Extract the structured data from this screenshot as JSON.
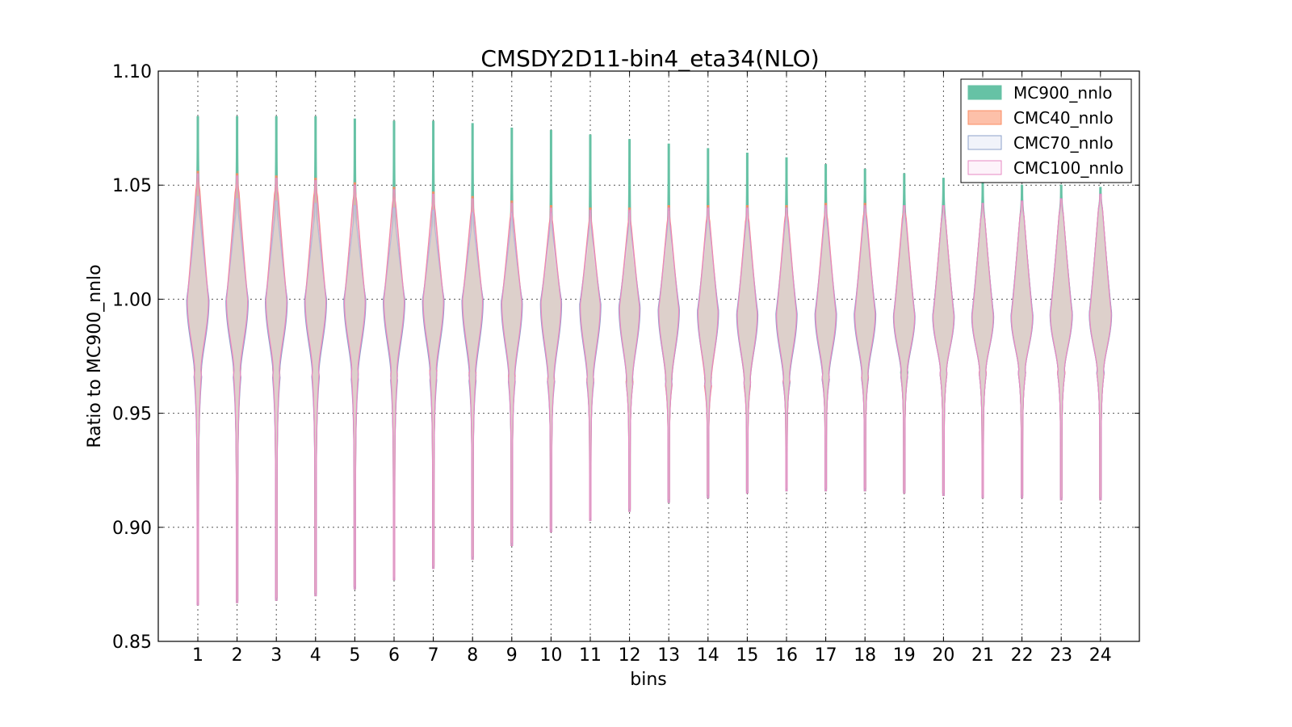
{
  "chart_data": {
    "type": "violin",
    "title": "CMSDY2D11-bin4_eta34(NLO)",
    "xlabel": "bins",
    "ylabel": "Ratio to MC900_nnlo",
    "ylim": [
      0.85,
      1.1
    ],
    "yticks": [
      "0.85",
      "0.90",
      "0.95",
      "1.00",
      "1.05",
      "1.10"
    ],
    "categories": [
      "1",
      "2",
      "3",
      "4",
      "5",
      "6",
      "7",
      "8",
      "9",
      "10",
      "11",
      "12",
      "13",
      "14",
      "15",
      "16",
      "17",
      "18",
      "19",
      "20",
      "21",
      "22",
      "23",
      "24"
    ],
    "grid": true,
    "legend_position": "top-right",
    "series": [
      {
        "name": "MC900_nnlo",
        "fill": "#66c2a5",
        "stroke": "#66c2a5",
        "fill_opacity": 1.0,
        "min": [
          0.866,
          0.867,
          0.868,
          0.87,
          0.873,
          0.877,
          0.882,
          0.886,
          0.892,
          0.898,
          0.903,
          0.907,
          0.911,
          0.913,
          0.915,
          0.916,
          0.916,
          0.916,
          0.915,
          0.914,
          0.913,
          0.913,
          0.912,
          0.912
        ],
        "max": [
          1.08,
          1.08,
          1.08,
          1.08,
          1.079,
          1.078,
          1.078,
          1.077,
          1.075,
          1.074,
          1.072,
          1.07,
          1.068,
          1.066,
          1.064,
          1.062,
          1.059,
          1.057,
          1.055,
          1.053,
          1.051,
          1.05,
          1.05,
          1.049
        ],
        "center": [
          1.0,
          1.0,
          1.0,
          1.0,
          1.0,
          1.0,
          1.0,
          1.0,
          0.999,
          0.999,
          0.998,
          0.997,
          0.996,
          0.995,
          0.994,
          0.994,
          0.994,
          0.994,
          0.993,
          0.993,
          0.993,
          0.993,
          0.994,
          0.994
        ],
        "q_low": [
          0.968,
          0.968,
          0.968,
          0.968,
          0.968,
          0.968,
          0.968,
          0.967,
          0.967,
          0.966,
          0.966,
          0.966,
          0.966,
          0.966,
          0.966,
          0.966,
          0.966,
          0.967,
          0.968,
          0.968,
          0.968,
          0.968,
          0.968,
          0.968
        ],
        "q_high": [
          1.04,
          1.038,
          1.036,
          1.034,
          1.032,
          1.03,
          1.028,
          1.026,
          1.024,
          1.022,
          1.022,
          1.022,
          1.023,
          1.024,
          1.026,
          1.028,
          1.03,
          1.032,
          1.034,
          1.036,
          1.036,
          1.037,
          1.038,
          1.04
        ],
        "max_width": [
          0.55,
          0.55,
          0.54,
          0.54,
          0.54,
          0.53,
          0.53,
          0.52,
          0.52,
          0.52,
          0.52,
          0.52,
          0.52,
          0.52,
          0.52,
          0.52,
          0.53,
          0.53,
          0.54,
          0.54,
          0.55,
          0.55,
          0.56,
          0.56
        ]
      },
      {
        "name": "CMC40_nnlo",
        "fill": "#fc8d62",
        "stroke": "#fc8d62",
        "fill_opacity": 0.55,
        "min": [
          0.867,
          0.868,
          0.869,
          0.871,
          0.874,
          0.878,
          0.883,
          0.887,
          0.893,
          0.899,
          0.904,
          0.908,
          0.912,
          0.914,
          0.916,
          0.917,
          0.917,
          0.917,
          0.916,
          0.915,
          0.914,
          0.914,
          0.913,
          0.913
        ],
        "max": [
          1.056,
          1.055,
          1.054,
          1.053,
          1.051,
          1.049,
          1.047,
          1.045,
          1.043,
          1.041,
          1.04,
          1.04,
          1.041,
          1.041,
          1.041,
          1.041,
          1.042,
          1.042,
          1.041,
          1.041,
          1.041,
          1.042,
          1.043,
          1.045
        ],
        "center": [
          1.0,
          1.0,
          1.0,
          1.0,
          1.0,
          1.0,
          1.0,
          1.0,
          0.999,
          0.999,
          0.998,
          0.997,
          0.996,
          0.995,
          0.994,
          0.994,
          0.994,
          0.994,
          0.993,
          0.993,
          0.993,
          0.993,
          0.994,
          0.994
        ],
        "q_low": [
          0.97,
          0.97,
          0.97,
          0.97,
          0.97,
          0.969,
          0.969,
          0.968,
          0.967,
          0.966,
          0.965,
          0.964,
          0.963,
          0.962,
          0.963,
          0.964,
          0.965,
          0.966,
          0.967,
          0.968,
          0.968,
          0.968,
          0.968,
          0.968
        ],
        "q_high": [
          1.048,
          1.047,
          1.046,
          1.045,
          1.043,
          1.041,
          1.039,
          1.037,
          1.035,
          1.033,
          1.032,
          1.032,
          1.033,
          1.034,
          1.034,
          1.035,
          1.035,
          1.036,
          1.036,
          1.036,
          1.036,
          1.037,
          1.038,
          1.04
        ],
        "max_width": [
          0.55,
          0.55,
          0.54,
          0.54,
          0.54,
          0.53,
          0.53,
          0.52,
          0.52,
          0.52,
          0.52,
          0.52,
          0.52,
          0.52,
          0.52,
          0.52,
          0.53,
          0.53,
          0.54,
          0.54,
          0.55,
          0.55,
          0.56,
          0.56
        ]
      },
      {
        "name": "CMC70_nnlo",
        "fill": "#e5e9f5",
        "stroke": "#8da0cb",
        "fill_opacity": 0.45,
        "min": [
          0.867,
          0.868,
          0.869,
          0.871,
          0.874,
          0.878,
          0.883,
          0.887,
          0.893,
          0.899,
          0.904,
          0.908,
          0.912,
          0.914,
          0.916,
          0.917,
          0.917,
          0.917,
          0.916,
          0.915,
          0.914,
          0.914,
          0.913,
          0.913
        ],
        "max": [
          1.045,
          1.044,
          1.043,
          1.042,
          1.041,
          1.04,
          1.039,
          1.038,
          1.038,
          1.038,
          1.038,
          1.038,
          1.039,
          1.04,
          1.04,
          1.04,
          1.04,
          1.04,
          1.041,
          1.041,
          1.042,
          1.043,
          1.044,
          1.046
        ],
        "center": [
          1.0,
          1.0,
          1.0,
          1.0,
          1.0,
          1.0,
          1.0,
          1.0,
          0.999,
          0.999,
          0.998,
          0.997,
          0.996,
          0.995,
          0.994,
          0.994,
          0.994,
          0.994,
          0.993,
          0.993,
          0.993,
          0.993,
          0.994,
          0.994
        ],
        "q_low": [
          0.966,
          0.966,
          0.966,
          0.966,
          0.966,
          0.966,
          0.966,
          0.965,
          0.965,
          0.964,
          0.964,
          0.964,
          0.964,
          0.964,
          0.964,
          0.964,
          0.965,
          0.966,
          0.967,
          0.968,
          0.968,
          0.968,
          0.968,
          0.968
        ],
        "q_high": [
          1.036,
          1.035,
          1.034,
          1.033,
          1.032,
          1.031,
          1.03,
          1.029,
          1.028,
          1.028,
          1.028,
          1.028,
          1.029,
          1.03,
          1.03,
          1.031,
          1.031,
          1.032,
          1.033,
          1.034,
          1.035,
          1.036,
          1.037,
          1.039
        ],
        "max_width": [
          0.57,
          0.57,
          0.56,
          0.56,
          0.56,
          0.55,
          0.55,
          0.54,
          0.54,
          0.54,
          0.54,
          0.54,
          0.54,
          0.54,
          0.54,
          0.54,
          0.55,
          0.55,
          0.55,
          0.55,
          0.56,
          0.56,
          0.57,
          0.57
        ]
      },
      {
        "name": "CMC100_nnlo",
        "fill": "#fbe9f5",
        "stroke": "#e78ac3",
        "fill_opacity": 0.35,
        "min": [
          0.866,
          0.867,
          0.868,
          0.87,
          0.873,
          0.877,
          0.882,
          0.886,
          0.892,
          0.898,
          0.903,
          0.907,
          0.911,
          0.913,
          0.915,
          0.916,
          0.916,
          0.916,
          0.915,
          0.914,
          0.913,
          0.913,
          0.912,
          0.912
        ],
        "max": [
          1.055,
          1.054,
          1.053,
          1.052,
          1.05,
          1.048,
          1.046,
          1.044,
          1.042,
          1.04,
          1.039,
          1.039,
          1.04,
          1.04,
          1.04,
          1.04,
          1.041,
          1.041,
          1.041,
          1.041,
          1.042,
          1.043,
          1.044,
          1.046
        ],
        "center": [
          1.0,
          1.0,
          1.0,
          1.0,
          1.0,
          1.0,
          1.0,
          1.0,
          0.999,
          0.999,
          0.998,
          0.997,
          0.996,
          0.995,
          0.994,
          0.994,
          0.994,
          0.994,
          0.993,
          0.993,
          0.993,
          0.993,
          0.994,
          0.994
        ],
        "q_low": [
          0.968,
          0.968,
          0.968,
          0.968,
          0.968,
          0.968,
          0.968,
          0.967,
          0.966,
          0.965,
          0.965,
          0.964,
          0.964,
          0.963,
          0.964,
          0.965,
          0.966,
          0.967,
          0.968,
          0.968,
          0.968,
          0.968,
          0.968,
          0.968
        ],
        "q_high": [
          1.046,
          1.045,
          1.044,
          1.043,
          1.042,
          1.04,
          1.038,
          1.036,
          1.034,
          1.032,
          1.031,
          1.031,
          1.032,
          1.033,
          1.033,
          1.034,
          1.034,
          1.035,
          1.035,
          1.036,
          1.036,
          1.037,
          1.038,
          1.04
        ],
        "max_width": [
          0.54,
          0.54,
          0.53,
          0.53,
          0.53,
          0.52,
          0.52,
          0.51,
          0.51,
          0.51,
          0.51,
          0.51,
          0.51,
          0.51,
          0.51,
          0.51,
          0.52,
          0.52,
          0.53,
          0.53,
          0.54,
          0.54,
          0.55,
          0.55
        ]
      }
    ]
  }
}
